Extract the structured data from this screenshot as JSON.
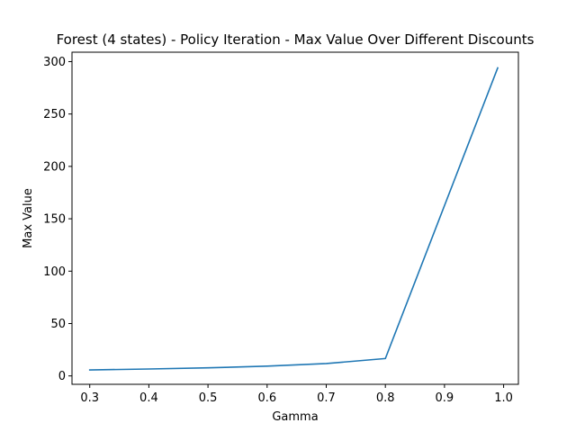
{
  "chart_data": {
    "type": "line",
    "title": "Forest (4 states) - Policy Iteration - Max Value Over Different Discounts",
    "xlabel": "Gamma",
    "ylabel": "Max Value",
    "xlim": [
      0.27,
      1.025
    ],
    "ylim": [
      -8,
      309
    ],
    "xticks": [
      0.3,
      0.4,
      0.5,
      0.6,
      0.7,
      0.8,
      0.9,
      1.0
    ],
    "xtick_labels": [
      "0.3",
      "0.4",
      "0.5",
      "0.6",
      "0.7",
      "0.8",
      "0.9",
      "1.0"
    ],
    "yticks": [
      0,
      50,
      100,
      150,
      200,
      250,
      300
    ],
    "ytick_labels": [
      "0",
      "50",
      "100",
      "150",
      "200",
      "250",
      "300"
    ],
    "grid": false,
    "series": [
      {
        "color": "#1f77b4",
        "x": [
          0.3,
          0.4,
          0.5,
          0.6,
          0.7,
          0.8,
          0.99
        ],
        "y": [
          5.7,
          6.6,
          7.7,
          9.3,
          11.8,
          16.6,
          294
        ]
      }
    ]
  }
}
